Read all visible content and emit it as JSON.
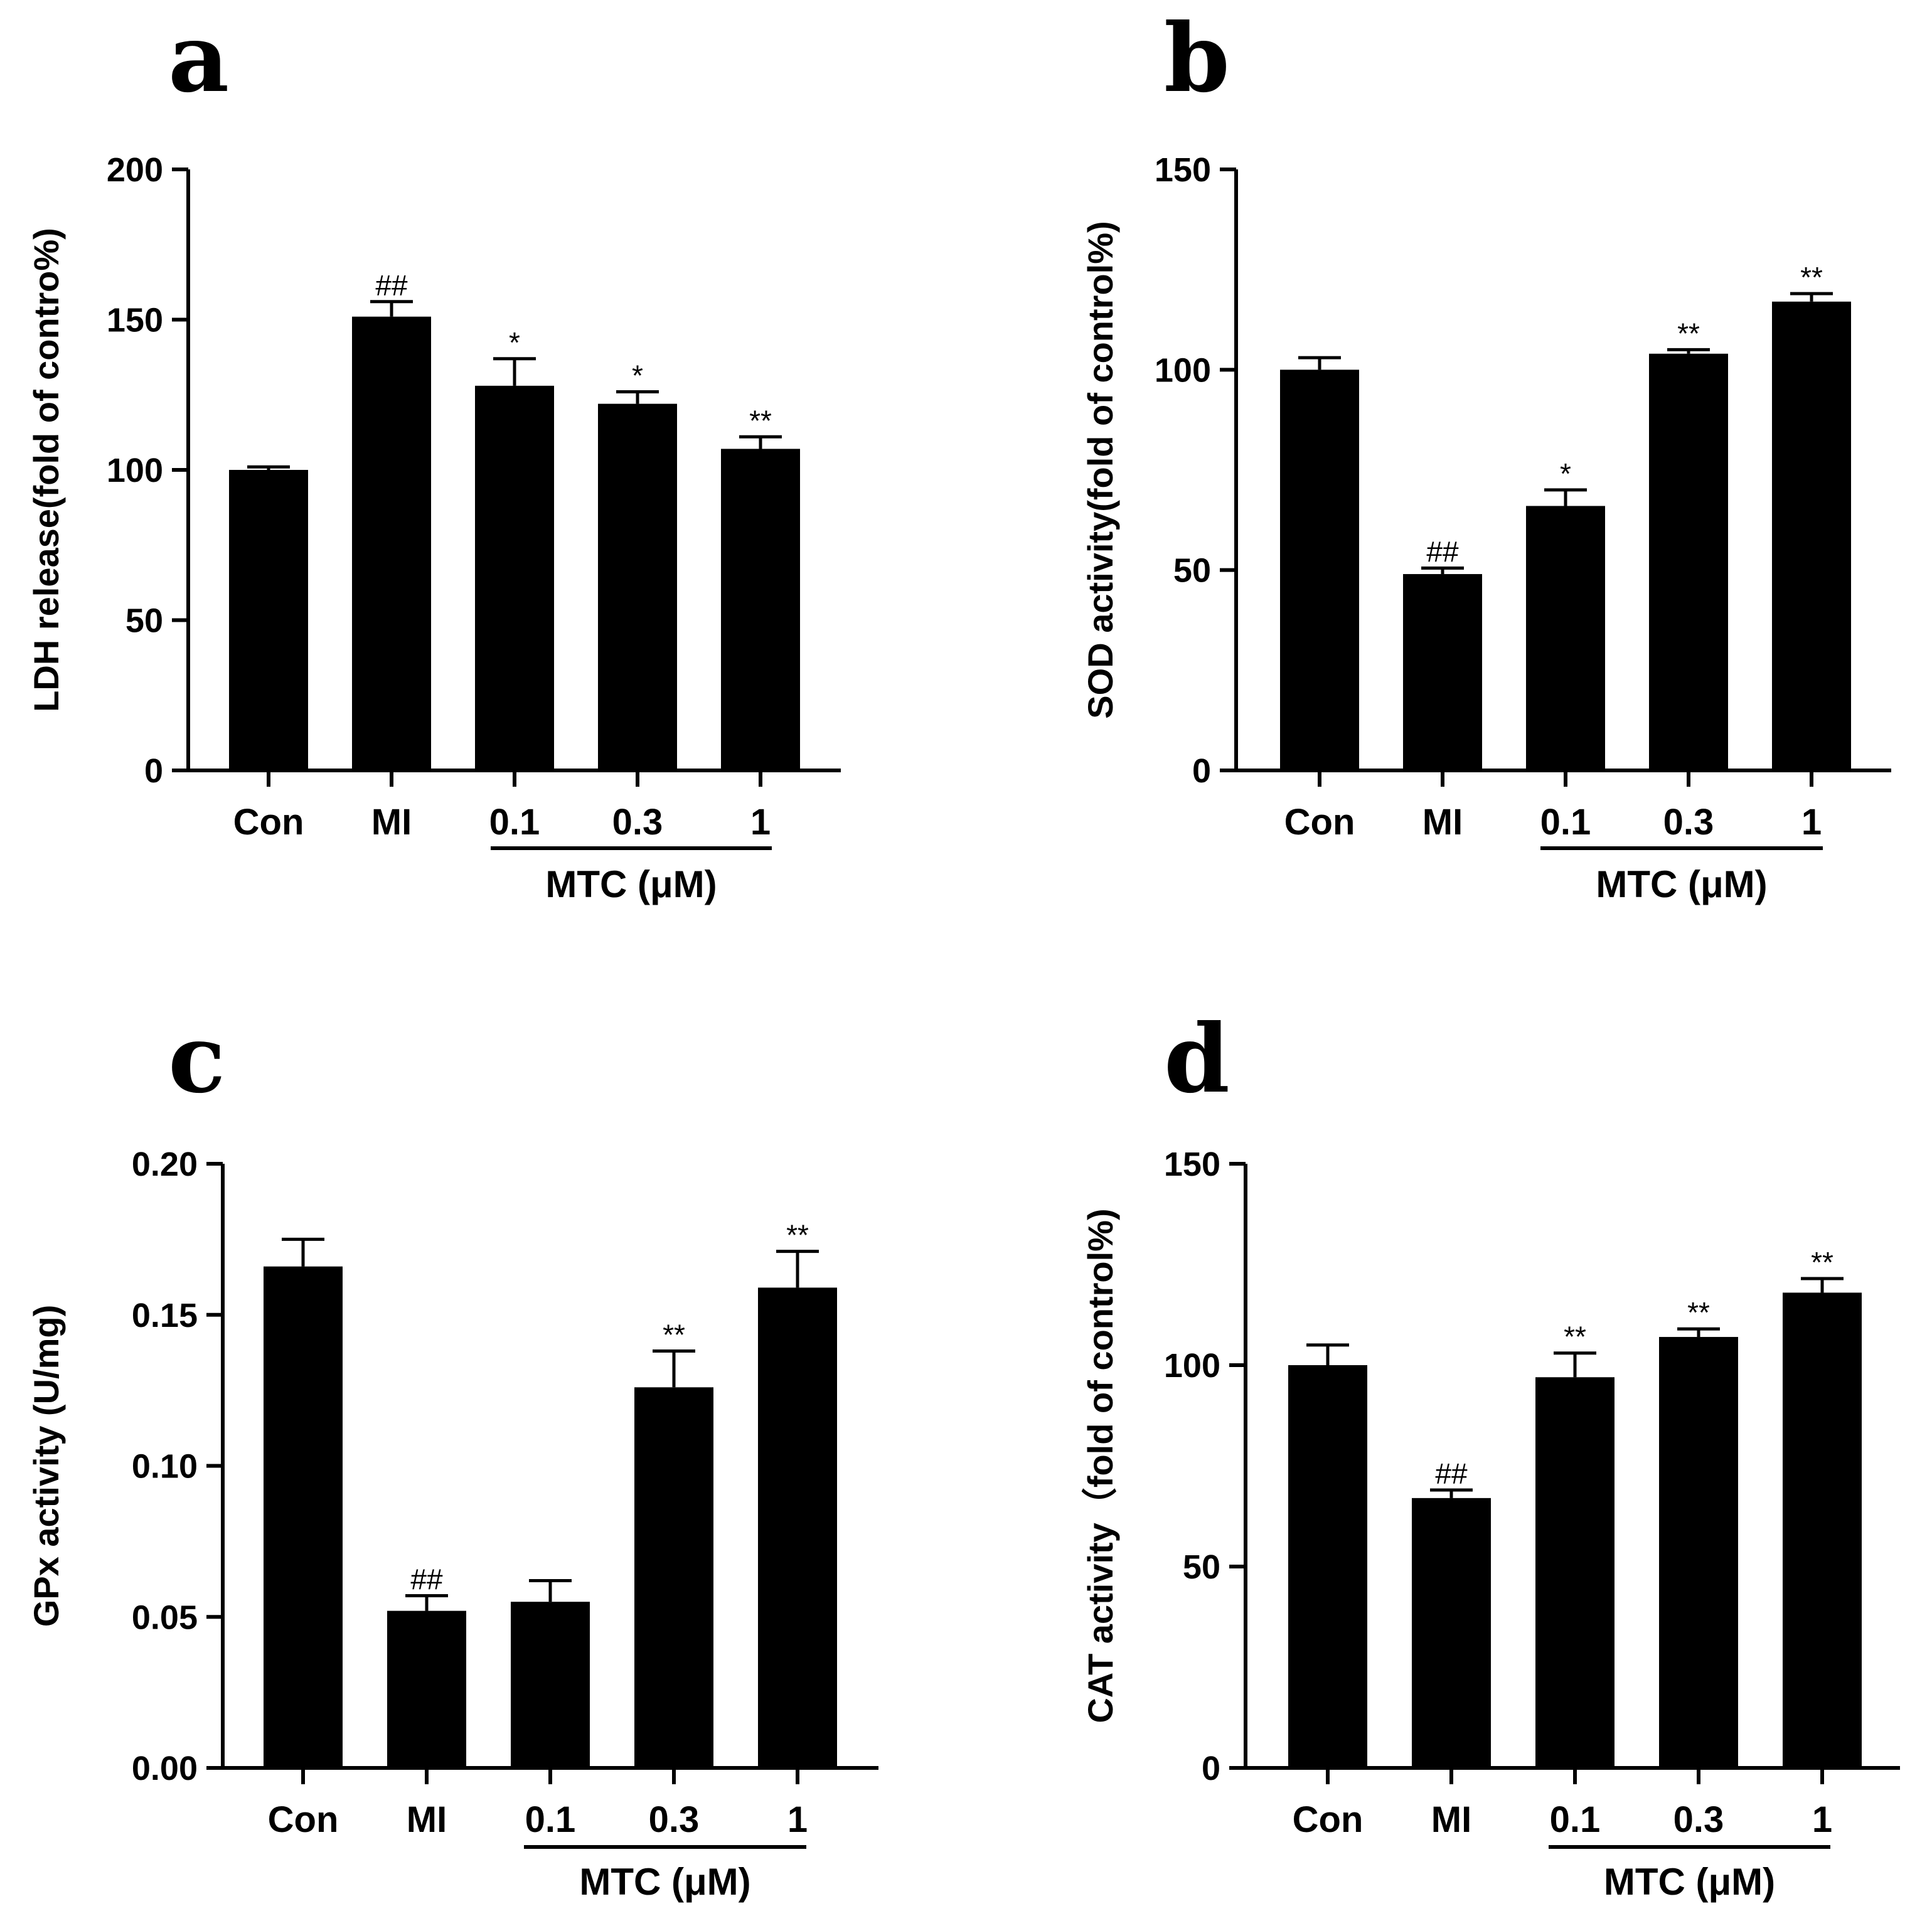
{
  "chart_data": [
    {
      "type": "bar",
      "panel_label": "a",
      "ylabel": "LDH release(fold of contro%)",
      "ylim": [
        0,
        200
      ],
      "yticks": [
        "0",
        "50",
        "100",
        "150",
        "200"
      ],
      "categories": [
        "Con",
        "MI",
        "0.1",
        "0.3",
        "1"
      ],
      "values": [
        100,
        151,
        128,
        122,
        107
      ],
      "errors": [
        1,
        5,
        9,
        4,
        4
      ],
      "annotations": [
        "",
        "##",
        "*",
        "*",
        "**"
      ],
      "group_label": "MTC (μM)",
      "group_categories": [
        "0.1",
        "0.3",
        "1"
      ]
    },
    {
      "type": "bar",
      "panel_label": "b",
      "ylabel": "SOD activity(fold of control%)",
      "ylim": [
        0,
        150
      ],
      "yticks": [
        "0",
        "50",
        "100",
        "150"
      ],
      "categories": [
        "Con",
        "MI",
        "0.1",
        "0.3",
        "1"
      ],
      "values": [
        100,
        49,
        66,
        104,
        117
      ],
      "errors": [
        3,
        1.5,
        4,
        1,
        2
      ],
      "annotations": [
        "",
        "##",
        "*",
        "**",
        "**"
      ],
      "group_label": "MTC (μM)",
      "group_categories": [
        "0.1",
        "0.3",
        "1"
      ]
    },
    {
      "type": "bar",
      "panel_label": "c",
      "ylabel": "GPx activity (U/mg)",
      "ylim": [
        0,
        0.2
      ],
      "yticks": [
        "0.00",
        "0.05",
        "0.10",
        "0.15",
        "0.20"
      ],
      "categories": [
        "Con",
        "MI",
        "0.1",
        "0.3",
        "1"
      ],
      "values": [
        0.166,
        0.052,
        0.055,
        0.126,
        0.159
      ],
      "errors": [
        0.009,
        0.005,
        0.007,
        0.012,
        0.012
      ],
      "annotations": [
        "",
        "##",
        "",
        "**",
        "**"
      ],
      "group_label": "MTC (μM)",
      "group_categories": [
        "0.1",
        "0.3",
        "1"
      ]
    },
    {
      "type": "bar",
      "panel_label": "d",
      "ylabel": "CAT activity（fold of control%)",
      "ylim": [
        0,
        150
      ],
      "yticks": [
        "0",
        "50",
        "100",
        "150"
      ],
      "categories": [
        "Con",
        "MI",
        "0.1",
        "0.3",
        "1"
      ],
      "values": [
        100,
        67,
        97,
        107,
        118
      ],
      "errors": [
        5,
        2,
        6,
        2,
        3.5
      ],
      "annotations": [
        "",
        "##",
        "**",
        "**",
        "**"
      ],
      "group_label": "MTC (μM)",
      "group_categories": [
        "0.1",
        "0.3",
        "1"
      ]
    }
  ]
}
